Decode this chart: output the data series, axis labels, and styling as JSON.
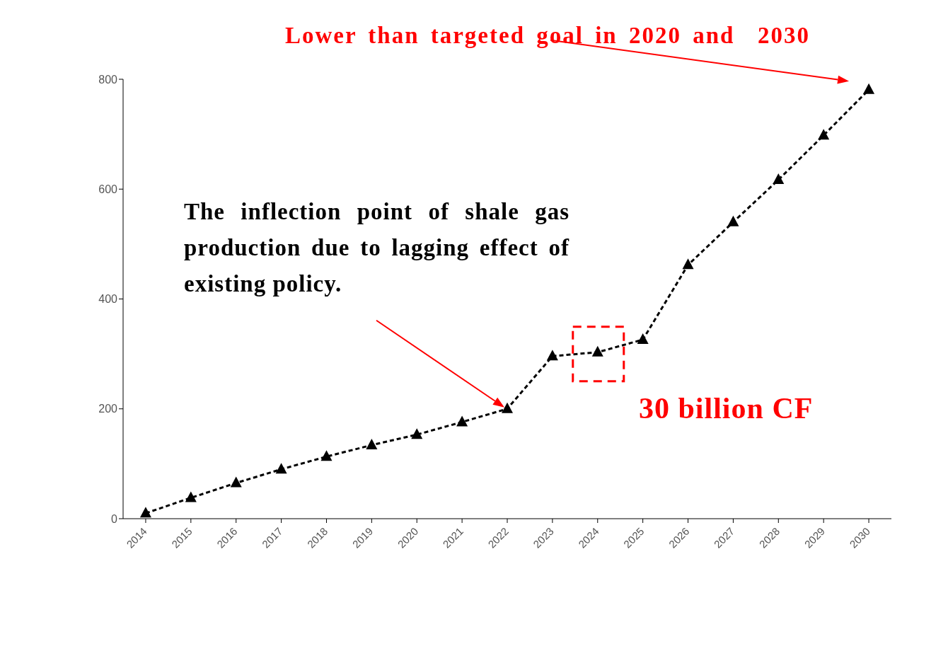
{
  "chart_data": {
    "type": "line",
    "categories": [
      "2014",
      "2015",
      "2016",
      "2017",
      "2018",
      "2019",
      "2020",
      "2021",
      "2022",
      "2023",
      "2024",
      "2025",
      "2026",
      "2027",
      "2028",
      "2029",
      "2030"
    ],
    "series": [
      {
        "color": "#000000",
        "values": [
          10,
          38,
          65,
          90,
          113,
          134,
          153,
          176,
          200,
          296,
          303,
          326,
          462,
          540,
          617,
          698,
          781
        ]
      }
    ],
    "ylim": [
      0,
      800
    ],
    "yticks": [
      0,
      200,
      400,
      600,
      800
    ],
    "grid": false,
    "legend": false,
    "marker": "triangle",
    "line_style": "dashed",
    "annotations": [
      "Lower than targeted goal in 2020 and  2030",
      "The inflection point of shale gas production due to lagging effect of existing policy.",
      "30 billion CF"
    ]
  }
}
